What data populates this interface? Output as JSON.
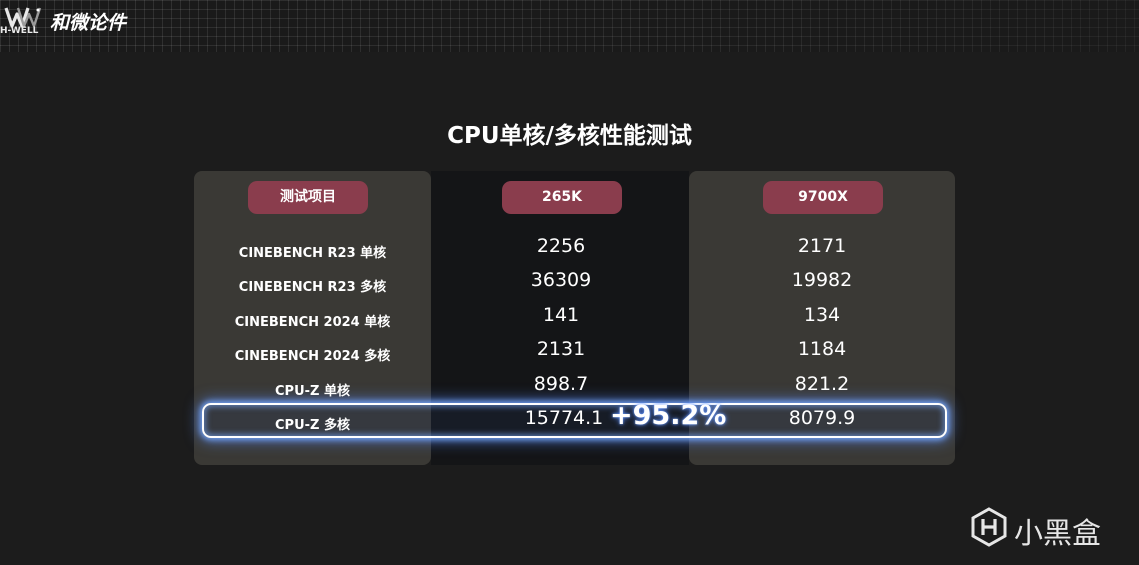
{
  "header": {
    "logo_text": "H-WELL",
    "brand": "和微论件"
  },
  "title": "CPU单核/多核性能测试",
  "table": {
    "columns": [
      "测试项目",
      "265K",
      "9700X"
    ],
    "rows": [
      {
        "test": "CINEBENCH R23 单核",
        "a": "2256",
        "b": "2171"
      },
      {
        "test": "CINEBENCH R23 多核",
        "a": "36309",
        "b": "19982"
      },
      {
        "test": "CINEBENCH 2024 单核",
        "a": "141",
        "b": "134"
      },
      {
        "test": "CINEBENCH 2024 多核",
        "a": "2131",
        "b": "1184"
      },
      {
        "test": "CPU-Z 单核",
        "a": "898.7",
        "b": "821.2"
      },
      {
        "test": "CPU-Z 多核",
        "a": "15774.1",
        "b": "8079.9"
      }
    ],
    "highlight_gain": "+95.2%"
  },
  "watermark": {
    "text": "小黑盒",
    "icon": "heybox-logo-icon"
  },
  "colors": {
    "pill": "#8a3d4d",
    "panel": "#3a3935",
    "glow": "#6e9bff"
  }
}
